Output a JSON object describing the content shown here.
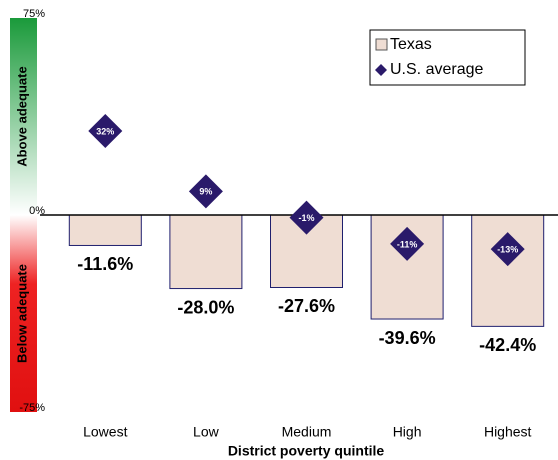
{
  "chart_data": {
    "type": "bar",
    "x_label": "District poverty quintile",
    "above_label": "Above adequate",
    "below_label": "Below adequate",
    "categories": [
      "Lowest",
      "Low",
      "Medium",
      "High",
      "Highest"
    ],
    "series": [
      {
        "name": "Texas",
        "type": "bar",
        "color": "#efddd3",
        "stroke": "#1f1f6e",
        "values": [
          -11.6,
          -28.0,
          -27.6,
          -39.6,
          -42.4
        ],
        "value_labels": [
          "-11.6%",
          "-28.0%",
          "-27.6%",
          "-39.6%",
          "-42.4%"
        ]
      },
      {
        "name": "U.S. average",
        "type": "diamond",
        "color": "#2a1a6a",
        "values": [
          32,
          9,
          -1,
          -11,
          -13
        ],
        "value_labels": [
          "32%",
          "9%",
          "-1%",
          "-11%",
          "-13%"
        ]
      }
    ],
    "ylim": [
      -75,
      75
    ],
    "yticks": [
      {
        "value": -75,
        "label": "-75%"
      },
      {
        "value": 0,
        "label": "0%"
      },
      {
        "value": 75,
        "label": "75%"
      }
    ],
    "legend": "top-right"
  }
}
